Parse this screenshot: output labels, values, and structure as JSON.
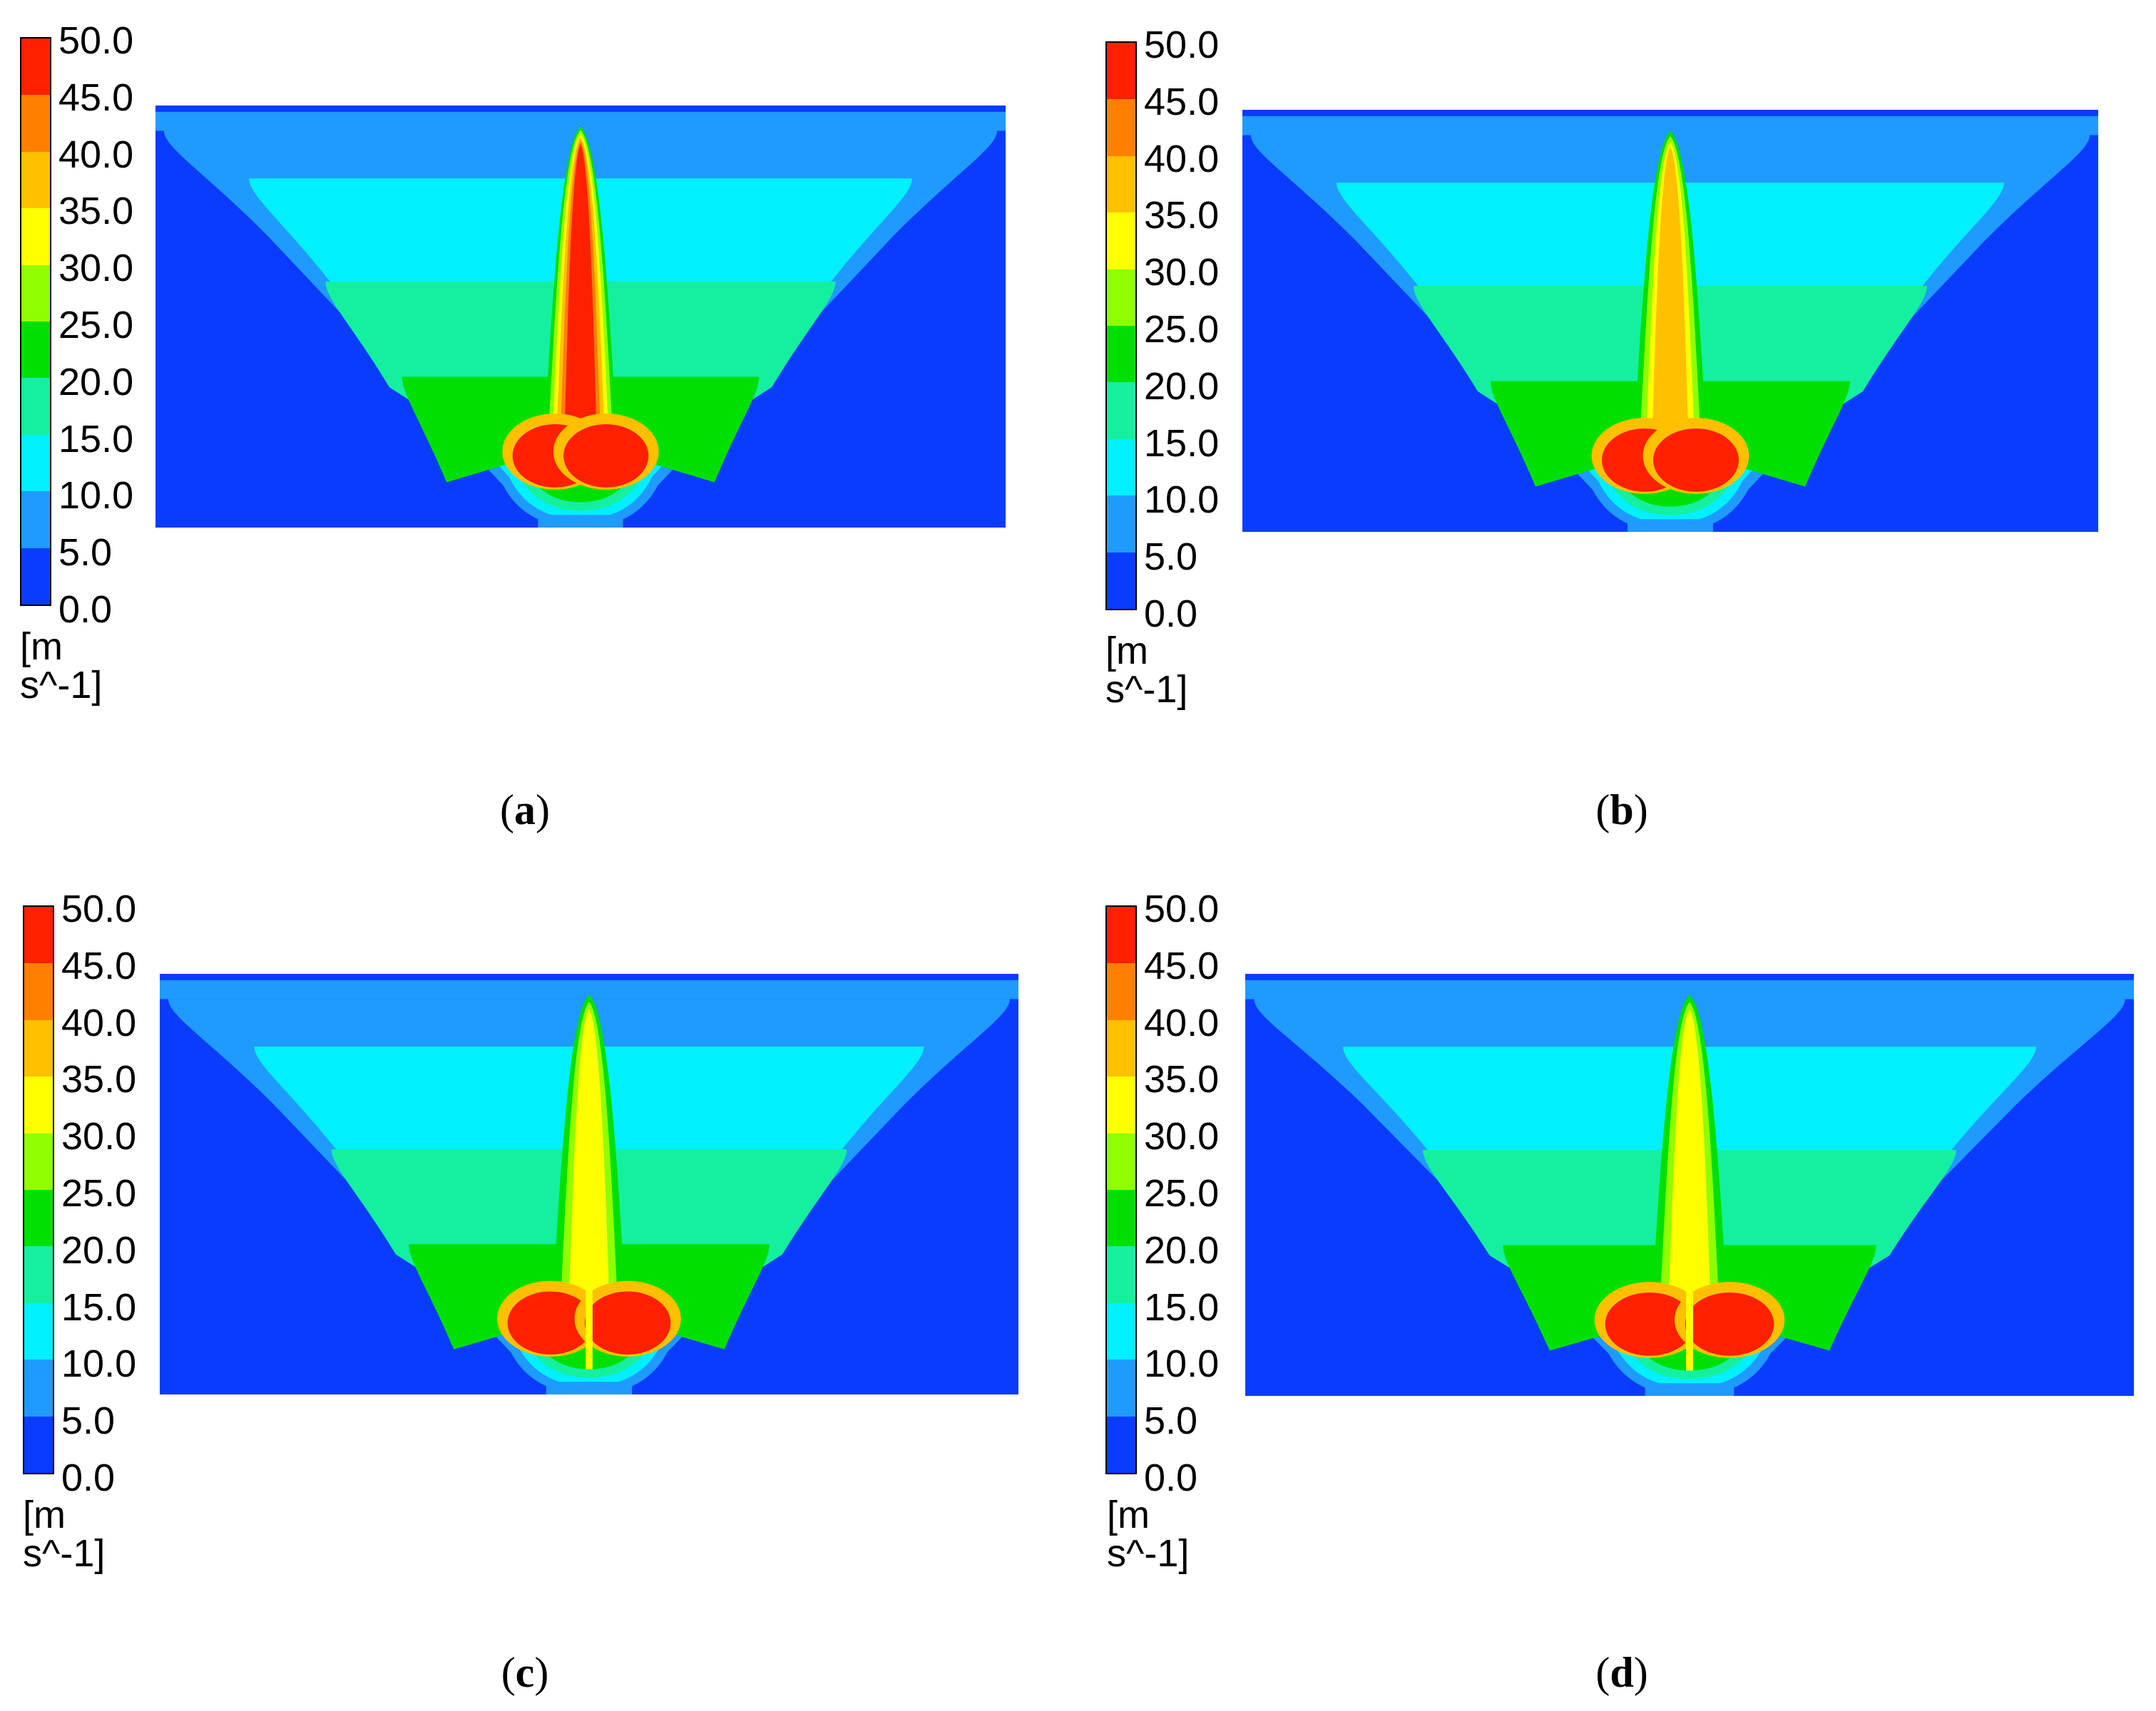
{
  "colors": {
    "scale": [
      "#0a3cff",
      "#1f9bff",
      "#00f0ff",
      "#14f0a0",
      "#00e000",
      "#90ff00",
      "#ffff00",
      "#ffc000",
      "#ff8000",
      "#ff2000"
    ]
  },
  "chart_data": [
    {
      "type": "heatmap",
      "caption_label": "a",
      "unit": "[m s^-1]",
      "scale_ticks": [
        "50.0",
        "45.0",
        "40.0",
        "35.0",
        "30.0",
        "25.0",
        "20.0",
        "15.0",
        "10.0",
        "5.0",
        "0.0"
      ],
      "scale_range": [
        0,
        50
      ],
      "bins": [
        0,
        5,
        10,
        15,
        20,
        25,
        30,
        35,
        40,
        45,
        50
      ],
      "max_jet_band": 50,
      "twin_core": false
    },
    {
      "type": "heatmap",
      "caption_label": "b",
      "unit": "[m s^-1]",
      "scale_ticks": [
        "50.0",
        "45.0",
        "40.0",
        "35.0",
        "30.0",
        "25.0",
        "20.0",
        "15.0",
        "10.0",
        "5.0",
        "0.0"
      ],
      "scale_range": [
        0,
        50
      ],
      "bins": [
        0,
        5,
        10,
        15,
        20,
        25,
        30,
        35,
        40,
        45,
        50
      ],
      "max_jet_band": 40,
      "twin_core": false
    },
    {
      "type": "heatmap",
      "caption_label": "c",
      "unit": "[m s^-1]",
      "scale_ticks": [
        "50.0",
        "45.0",
        "40.0",
        "35.0",
        "30.0",
        "25.0",
        "20.0",
        "15.0",
        "10.0",
        "5.0",
        "0.0"
      ],
      "scale_range": [
        0,
        50
      ],
      "bins": [
        0,
        5,
        10,
        15,
        20,
        25,
        30,
        35,
        40,
        45,
        50
      ],
      "max_jet_band": 35,
      "twin_core": true
    },
    {
      "type": "heatmap",
      "caption_label": "d",
      "unit": "[m s^-1]",
      "scale_ticks": [
        "50.0",
        "45.0",
        "40.0",
        "35.0",
        "30.0",
        "25.0",
        "20.0",
        "15.0",
        "10.0",
        "5.0",
        "0.0"
      ],
      "scale_range": [
        0,
        50
      ],
      "bins": [
        0,
        5,
        10,
        15,
        20,
        25,
        30,
        35,
        40,
        45,
        50
      ],
      "max_jet_band": 35,
      "twin_core": true
    }
  ]
}
